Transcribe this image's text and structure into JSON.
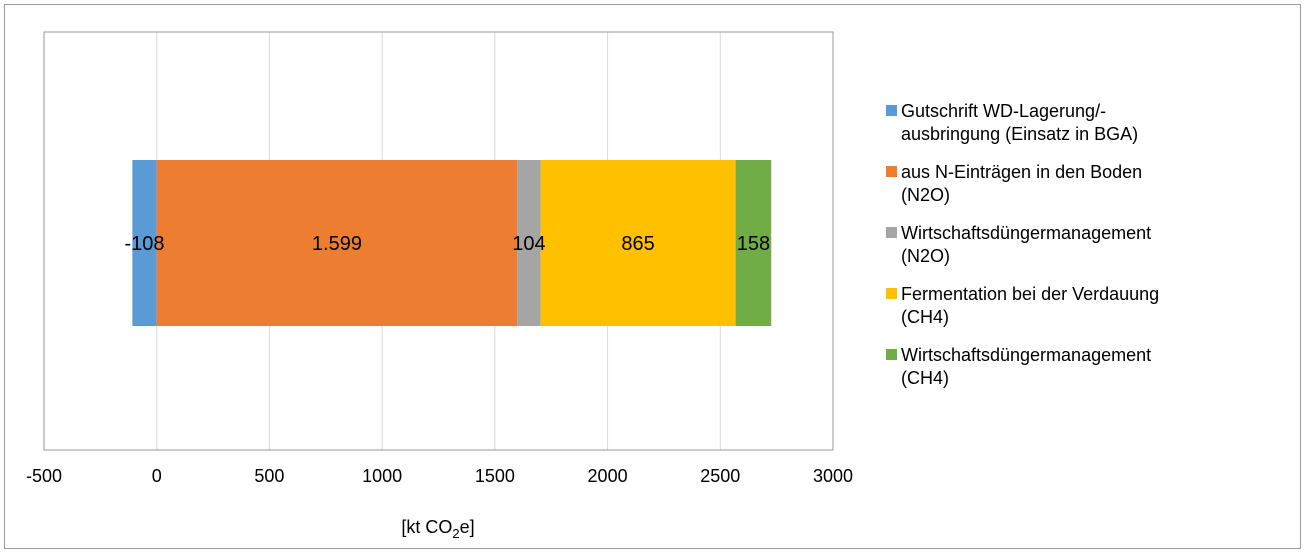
{
  "chart_data": {
    "type": "bar",
    "orientation": "horizontal",
    "stacked": true,
    "xlim": [
      -500,
      3000
    ],
    "xticks": [
      "-500",
      "0",
      "500",
      "1000",
      "1500",
      "2000",
      "2500",
      "3000"
    ],
    "xtick_values": [
      -500,
      0,
      500,
      1000,
      1500,
      2000,
      2500,
      3000
    ],
    "xlabel_main": "[kt CO",
    "xlabel_sub": "2",
    "xlabel_end": "e]",
    "grid": "vertical",
    "legend_position": "right",
    "series": [
      {
        "name": "Gutschrift WD-Lagerung/-ausbringung (Einsatz in BGA)",
        "legend_lines": [
          "Gutschrift WD-Lagerung/-",
          "ausbringung (Einsatz in BGA)"
        ],
        "value": -108,
        "label": "-108",
        "color": "#5b9bd5"
      },
      {
        "name": "aus N-Einträgen in den Boden (N2O)",
        "legend_lines": [
          "aus N-Einträgen in den Boden",
          "(N2O)"
        ],
        "value": 1599,
        "label": "1.599",
        "color": "#ed7d31"
      },
      {
        "name": "Wirtschaftsdüngermanagement (N2O)",
        "legend_lines": [
          "Wirtschaftsdüngermanagement",
          "(N2O)"
        ],
        "value": 104,
        "label": "104",
        "color": "#a5a5a5"
      },
      {
        "name": "Fermentation bei der Verdauung (CH4)",
        "legend_lines": [
          "Fermentation bei der Verdauung",
          "(CH4)"
        ],
        "value": 865,
        "label": "865",
        "color": "#ffc000"
      },
      {
        "name": "Wirtschaftsdüngermanagement (CH4)",
        "legend_lines": [
          "Wirtschaftsdüngermanagement",
          "(CH4)"
        ],
        "value": 158,
        "label": "158",
        "color": "#70ad47"
      }
    ]
  }
}
